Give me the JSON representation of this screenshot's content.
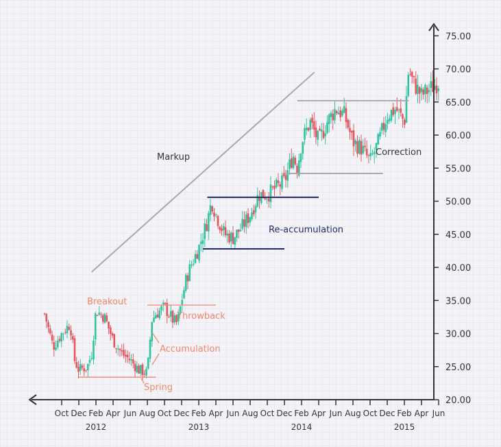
{
  "chart_data": {
    "type": "candlestick",
    "title": "",
    "xlabel": "",
    "ylabel": "",
    "ylim": [
      20,
      77
    ],
    "grid": true,
    "colors": {
      "up": "#2ec4a0",
      "down": "#e8545c",
      "axis": "#333333",
      "grid": "#dcdbe4",
      "phase": "#f0876a",
      "accum": "#1f2a6b",
      "trend": "#a8a8ad",
      "support": "#a8a8ad"
    },
    "y_ticks": [
      "75.00",
      "70.00",
      "65.00",
      "60.00",
      "55.00",
      "50.00",
      "45.00",
      "40.00",
      "35.00",
      "30.00",
      "25.00",
      "20.00"
    ],
    "y_tick_values": [
      75,
      70,
      65,
      60,
      55,
      50,
      45,
      40,
      35,
      30,
      25,
      20
    ],
    "x_ticks": [
      "Oct",
      "Dec",
      "Feb",
      "Apr",
      "Jun",
      "Aug",
      "Oct",
      "Dec",
      "Feb",
      "Apr",
      "Jun",
      "Aug",
      "Oct",
      "Dec",
      "Feb",
      "Apr",
      "Jun",
      "Aug",
      "Oct",
      "Dec",
      "Feb",
      "Apr",
      "Jun"
    ],
    "x_tick_months": [
      0,
      2,
      4,
      6,
      8,
      10,
      12,
      14,
      16,
      18,
      20,
      22,
      24,
      26,
      28,
      30,
      32,
      34,
      36,
      38,
      40,
      42,
      44
    ],
    "years": [
      "2012",
      "2013",
      "2014",
      "2015"
    ],
    "year_months": [
      4,
      16,
      28,
      40
    ],
    "x_range_months": [
      -2,
      45
    ],
    "price_path": [
      [
        -2,
        33
      ],
      [
        -1,
        28
      ],
      [
        0,
        30
      ],
      [
        1,
        31.5
      ],
      [
        1.5,
        26
      ],
      [
        2,
        24.5
      ],
      [
        3,
        25
      ],
      [
        3.5,
        27
      ],
      [
        4,
        33.5
      ],
      [
        5,
        32.5
      ],
      [
        6,
        29
      ],
      [
        7,
        27
      ],
      [
        8,
        26
      ],
      [
        9,
        24.5
      ],
      [
        10,
        24
      ],
      [
        10.5,
        32
      ],
      [
        11,
        33
      ],
      [
        12,
        34
      ],
      [
        13,
        32
      ],
      [
        13.5,
        31.5
      ],
      [
        14,
        35
      ],
      [
        14.5,
        38
      ],
      [
        15,
        40
      ],
      [
        16,
        43
      ],
      [
        17,
        47
      ],
      [
        17.5,
        50
      ],
      [
        18,
        48
      ],
      [
        19,
        45
      ],
      [
        20,
        44.5
      ],
      [
        21,
        46
      ],
      [
        22,
        48
      ],
      [
        23,
        51
      ],
      [
        24,
        51
      ],
      [
        25,
        52
      ],
      [
        26,
        53
      ],
      [
        27,
        57
      ],
      [
        27.5,
        55
      ],
      [
        28,
        59
      ],
      [
        29,
        62
      ],
      [
        30,
        59
      ],
      [
        31,
        62
      ],
      [
        32,
        64
      ],
      [
        33,
        63
      ],
      [
        34,
        59
      ],
      [
        35,
        58
      ],
      [
        36,
        56
      ],
      [
        37,
        59
      ],
      [
        38,
        63
      ],
      [
        39,
        64
      ],
      [
        40,
        62
      ],
      [
        40.5,
        70
      ],
      [
        41,
        68
      ],
      [
        42,
        66
      ],
      [
        43,
        67
      ],
      [
        44,
        68
      ]
    ],
    "annotations": {
      "markup": "Markup",
      "breakout": "Breakout",
      "throwback": "Throwback",
      "accumulation": "Accumulation",
      "spring": "Spring",
      "reaccumulation": "Re-accumulation",
      "correction": "Correction"
    },
    "levels": {
      "spring_support": {
        "y": 23.4,
        "x": [
          2,
          11
        ]
      },
      "breakout_line": {
        "y": 34.3,
        "x": [
          10,
          18
        ]
      },
      "reaccum_top": {
        "y": 50.6,
        "x": [
          17,
          30
        ]
      },
      "reaccum_bottom": {
        "y": 42.8,
        "x": [
          16.5,
          26
        ]
      },
      "correction_bottom": {
        "y": 54.2,
        "x": [
          26,
          37.5
        ]
      },
      "correction_top": {
        "y": 65.2,
        "x": [
          27.5,
          40.5
        ]
      },
      "markup_trend": {
        "from": [
          3.5,
          39.3
        ],
        "to": [
          29.5,
          69.5
        ]
      }
    }
  }
}
